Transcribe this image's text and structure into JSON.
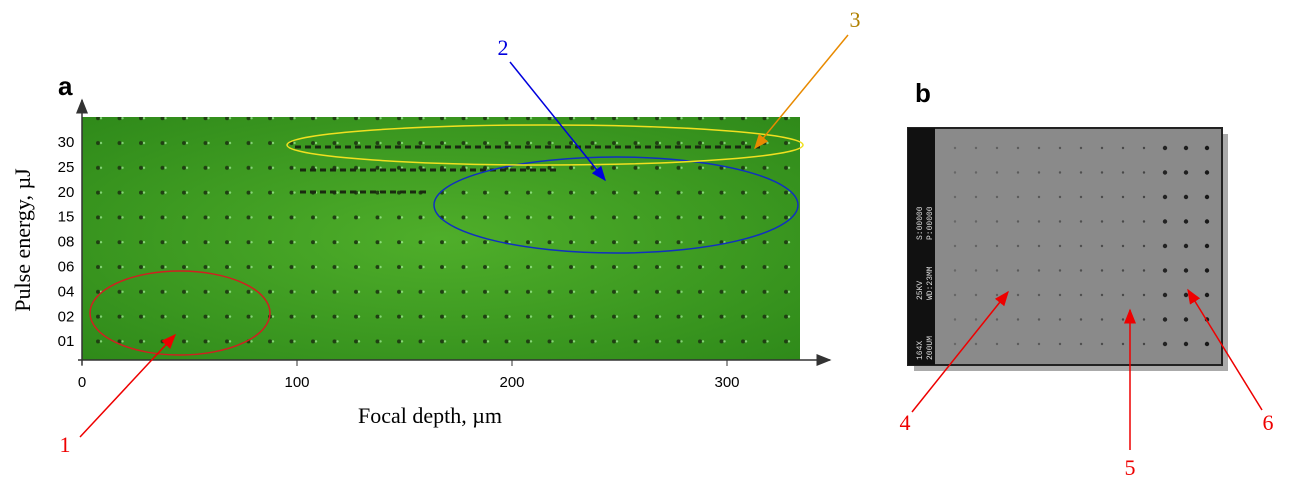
{
  "panel_a": {
    "label": "a",
    "x_axis_label": "Focal depth, µm",
    "y_axis_label": "Pulse energy, µJ",
    "x_ticks": [
      "0",
      "100",
      "200",
      "300"
    ],
    "y_ticks": [
      "30",
      "25",
      "20",
      "15",
      "08",
      "06",
      "04",
      "02",
      "01"
    ],
    "annotations": [
      "1",
      "2",
      "3"
    ]
  },
  "panel_b": {
    "label": "b",
    "sem_text": [
      "164X",
      "200UM",
      "25KV",
      "WD:23MM",
      "S:00000",
      "P:00000"
    ],
    "annotations": [
      "4",
      "5",
      "6"
    ]
  }
}
